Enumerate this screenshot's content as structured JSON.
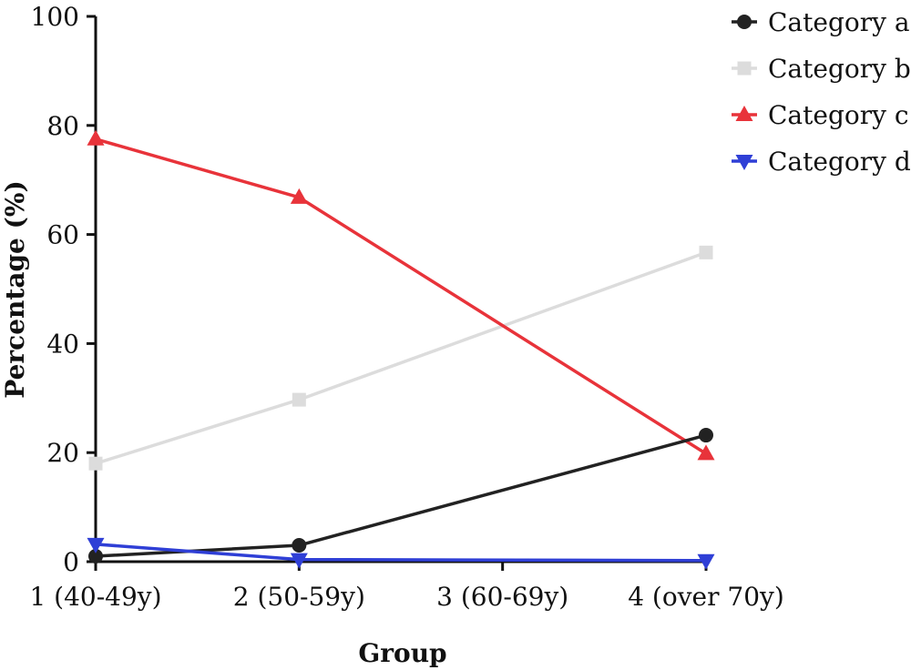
{
  "chart_data": {
    "type": "line",
    "categories": [
      "1 (40-49y)",
      "2 (50-59y)",
      "3 (60-69y)",
      "4 (over 70y)"
    ],
    "x_positions": [
      1,
      2,
      3,
      4
    ],
    "xlabel": "Group",
    "ylabel": "Percentage (%)",
    "ylim": [
      0,
      100
    ],
    "yticks": [
      0,
      20,
      40,
      60,
      80,
      100
    ],
    "grid": false,
    "legend_position": "top-right",
    "series": [
      {
        "name": "Category a",
        "color": "#222222",
        "marker": "circle",
        "x": [
          1,
          2,
          4
        ],
        "values": [
          1,
          3,
          23.2
        ]
      },
      {
        "name": "Category b",
        "color": "#dcdcdc",
        "marker": "square",
        "x": [
          1,
          2,
          4
        ],
        "values": [
          18,
          29.7,
          56.7
        ]
      },
      {
        "name": "Category c",
        "color": "#e8333a",
        "marker": "triangle-up",
        "x": [
          1,
          2,
          4
        ],
        "values": [
          77.5,
          66.8,
          19.8
        ]
      },
      {
        "name": "Category d",
        "color": "#2f3fd6",
        "marker": "triangle-down",
        "x": [
          1,
          2,
          4
        ],
        "values": [
          3.2,
          0.4,
          0.2
        ]
      }
    ]
  }
}
